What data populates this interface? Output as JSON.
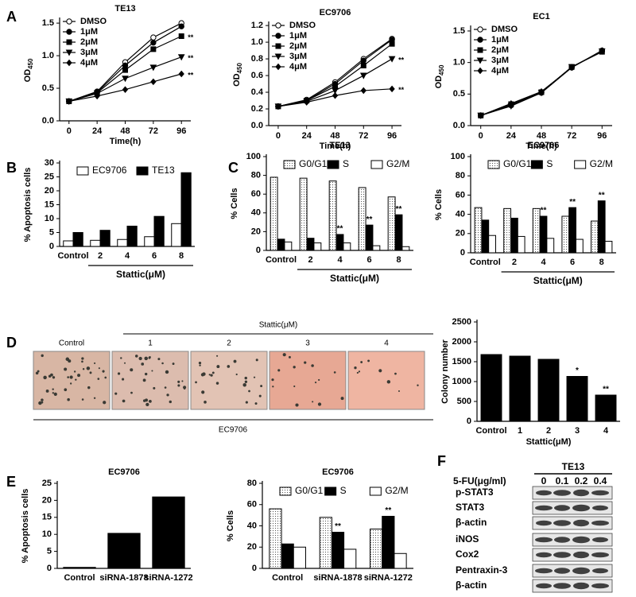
{
  "panels": [
    "A",
    "B",
    "C",
    "D",
    "E",
    "F"
  ],
  "chart_data": [
    {
      "type": "line",
      "title": "TE13",
      "x_label": "Time(h)",
      "y_label": "OD",
      "y_label_sub": "450",
      "x": [
        0,
        24,
        48,
        72,
        96
      ],
      "xlim": [
        -8,
        104
      ],
      "xticks": [
        0,
        24,
        48,
        72,
        96
      ],
      "ylim": [
        0,
        1.55
      ],
      "yticks": [
        {
          "value": 0,
          "label": "0.0"
        },
        0.5,
        {
          "value": 1,
          "label": "1.0"
        },
        1.5
      ],
      "legend": "upper left",
      "series": [
        {
          "name": "DMSO",
          "color": "#000000",
          "marker": "open-circle",
          "values": [
            0.3,
            0.45,
            0.9,
            1.28,
            1.5
          ],
          "annotations": [
            null,
            null,
            null,
            null,
            null
          ]
        },
        {
          "name": "1μM",
          "color": "#000000",
          "marker": "circle",
          "values": [
            0.3,
            0.44,
            0.85,
            1.2,
            1.45
          ],
          "annotations": [
            null,
            null,
            null,
            null,
            null
          ]
        },
        {
          "name": "2μM",
          "color": "#000000",
          "marker": "square",
          "values": [
            0.3,
            0.43,
            0.78,
            1.1,
            1.3
          ],
          "annotations": [
            null,
            null,
            null,
            null,
            "**"
          ]
        },
        {
          "name": "3μM",
          "color": "#000000",
          "marker": "triangle-down",
          "values": [
            0.3,
            0.42,
            0.65,
            0.82,
            0.98
          ],
          "annotations": [
            null,
            null,
            null,
            null,
            "**"
          ]
        },
        {
          "name": "4μM",
          "color": "#000000",
          "marker": "diamond",
          "values": [
            0.3,
            0.38,
            0.48,
            0.6,
            0.72
          ],
          "annotations": [
            null,
            null,
            null,
            null,
            "**"
          ]
        }
      ]
    },
    {
      "type": "line",
      "title": "EC9706",
      "x_label": "Time(h)",
      "y_label": "OD",
      "y_label_sub": "450",
      "x": [
        0,
        24,
        48,
        72,
        96
      ],
      "xlim": [
        -8,
        104
      ],
      "xticks": [
        0,
        24,
        48,
        72,
        96
      ],
      "ylim": [
        0,
        1.22
      ],
      "yticks": [
        {
          "value": 0,
          "label": "0.0"
        },
        0.2,
        0.4,
        0.6,
        0.8,
        {
          "value": 1,
          "label": "1.0"
        },
        1.2
      ],
      "legend": "upper left",
      "series": [
        {
          "name": "DMSO",
          "color": "#000000",
          "marker": "open-circle",
          "values": [
            0.23,
            0.31,
            0.52,
            0.8,
            1.04
          ],
          "annotations": [
            null,
            null,
            null,
            null,
            null
          ]
        },
        {
          "name": "1μM",
          "color": "#000000",
          "marker": "circle",
          "values": [
            0.23,
            0.3,
            0.5,
            0.78,
            1.03
          ],
          "annotations": [
            null,
            null,
            null,
            null,
            null
          ]
        },
        {
          "name": "2μM",
          "color": "#000000",
          "marker": "square",
          "values": [
            0.23,
            0.3,
            0.47,
            0.72,
            0.98
          ],
          "annotations": [
            null,
            null,
            null,
            null,
            null
          ]
        },
        {
          "name": "3μM",
          "color": "#000000",
          "marker": "triangle-down",
          "values": [
            0.23,
            0.29,
            0.42,
            0.6,
            0.8
          ],
          "annotations": [
            null,
            null,
            null,
            null,
            "**"
          ]
        },
        {
          "name": "4μM",
          "color": "#000000",
          "marker": "diamond",
          "values": [
            0.23,
            0.28,
            0.36,
            0.42,
            0.44
          ],
          "annotations": [
            null,
            null,
            null,
            null,
            "**"
          ]
        }
      ]
    },
    {
      "type": "line",
      "title": "EC1",
      "x_label": "Time(h)",
      "y_label": "OD",
      "y_label_sub": "450",
      "x": [
        0,
        24,
        48,
        72,
        96
      ],
      "xlim": [
        -8,
        104
      ],
      "xticks": [
        0,
        24,
        48,
        72,
        96
      ],
      "ylim": [
        0,
        1.55
      ],
      "yticks": [
        {
          "value": 0,
          "label": "0.0"
        },
        0.5,
        {
          "value": 1,
          "label": "1.0"
        },
        1.5
      ],
      "legend": "upper left",
      "series": [
        {
          "name": "DMSO",
          "color": "#000000",
          "marker": "open-circle",
          "values": [
            0.16,
            0.33,
            0.53,
            0.93,
            1.18
          ],
          "annotations": [
            null,
            null,
            null,
            null,
            null
          ]
        },
        {
          "name": "1μM",
          "color": "#000000",
          "marker": "circle",
          "values": [
            0.16,
            0.32,
            0.52,
            0.92,
            1.19
          ],
          "annotations": [
            null,
            null,
            null,
            null,
            null
          ]
        },
        {
          "name": "2μM",
          "color": "#000000",
          "marker": "square",
          "values": [
            0.16,
            0.34,
            0.53,
            0.93,
            1.17
          ],
          "annotations": [
            null,
            null,
            null,
            null,
            null
          ]
        },
        {
          "name": "3μM",
          "color": "#000000",
          "marker": "triangle-down",
          "values": [
            0.16,
            0.31,
            0.52,
            0.93,
            1.18
          ],
          "annotations": [
            null,
            null,
            null,
            null,
            null
          ]
        },
        {
          "name": "4μM",
          "color": "#000000",
          "marker": "diamond",
          "values": [
            0.16,
            0.35,
            0.54,
            0.92,
            1.19
          ],
          "annotations": [
            null,
            null,
            null,
            null,
            null
          ]
        }
      ]
    },
    {
      "type": "bar",
      "y_label": "% Apoptosis cells",
      "x_group_label": "Stattic(μM)",
      "categories": [
        "Control",
        "2",
        "4",
        "6",
        "8"
      ],
      "ylim": [
        0,
        30
      ],
      "yticks": [
        0,
        5,
        10,
        15,
        20,
        25,
        30
      ],
      "legend": "upper center",
      "series": [
        {
          "name": "EC9706",
          "color": "#ffffff",
          "values": [
            2,
            2.2,
            2.5,
            3.5,
            8.2
          ],
          "annotations": [
            null,
            null,
            null,
            null,
            null
          ]
        },
        {
          "name": "TE13",
          "color": "#000000",
          "values": [
            5,
            5.8,
            7.3,
            10.8,
            26.5
          ],
          "annotations": [
            null,
            null,
            null,
            null,
            null
          ]
        }
      ]
    },
    {
      "type": "bar",
      "title": "TE13",
      "y_label": "% Cells",
      "x_group_label": "Stattic(μM)",
      "categories": [
        "Control",
        "2",
        "4",
        "6",
        "8"
      ],
      "ylim": [
        0,
        100
      ],
      "yticks": [
        0,
        20,
        40,
        60,
        80,
        100
      ],
      "legend": "upper center",
      "series": [
        {
          "name": "G0/G1",
          "color": "#ffffff",
          "pattern": "dots",
          "values": [
            78,
            77,
            74,
            67,
            57
          ],
          "annotations": [
            null,
            null,
            null,
            null,
            null
          ]
        },
        {
          "name": "S",
          "color": "#000000",
          "values": [
            12,
            13,
            17,
            27,
            38
          ],
          "annotations": [
            null,
            null,
            "**",
            "**",
            "**"
          ]
        },
        {
          "name": "G2/M",
          "color": "#ffffff",
          "values": [
            9,
            8,
            8,
            5,
            4
          ],
          "annotations": [
            null,
            null,
            null,
            null,
            null
          ]
        }
      ]
    },
    {
      "type": "bar",
      "title": "EC9706",
      "y_label": "% Cells",
      "x_group_label": "Stattic(μM)",
      "categories": [
        "Control",
        "2",
        "4",
        "6",
        "8"
      ],
      "ylim": [
        0,
        100
      ],
      "yticks": [
        0,
        20,
        40,
        60,
        80,
        100
      ],
      "legend": "upper center",
      "series": [
        {
          "name": "G0/G1",
          "color": "#ffffff",
          "pattern": "dots",
          "values": [
            47,
            46,
            46,
            38,
            33
          ],
          "annotations": [
            null,
            null,
            null,
            null,
            null
          ]
        },
        {
          "name": "S",
          "color": "#000000",
          "values": [
            34,
            36,
            38,
            47,
            54
          ],
          "annotations": [
            null,
            null,
            "**",
            "**",
            "**"
          ]
        },
        {
          "name": "G2/M",
          "color": "#ffffff",
          "values": [
            18,
            17,
            15,
            14,
            12
          ],
          "annotations": [
            null,
            null,
            null,
            null,
            null
          ]
        }
      ]
    },
    {
      "type": "bar",
      "y_label": "Colony number",
      "x_label": "Stattic(μM)",
      "categories": [
        "Control",
        "1",
        "2",
        "3",
        "4"
      ],
      "ylim": [
        0,
        2500
      ],
      "yticks": [
        0,
        500,
        1000,
        1500,
        2000,
        2500
      ],
      "series": [
        {
          "color": "#000000",
          "values": [
            1680,
            1640,
            1560,
            1130,
            660
          ],
          "annotations": [
            null,
            null,
            null,
            "*",
            "**"
          ]
        }
      ]
    },
    {
      "type": "bar",
      "title": "EC9706",
      "y_label": "% Apoptosis cells",
      "categories": [
        "Control",
        "siRNA-1878",
        "siRNA-1272"
      ],
      "ylim": [
        0,
        25
      ],
      "yticks": [
        0,
        5,
        10,
        15,
        20,
        25
      ],
      "series": [
        {
          "color": "#000000",
          "values": [
            0.3,
            10.3,
            21
          ],
          "annotations": [
            null,
            null,
            null
          ]
        }
      ]
    },
    {
      "type": "bar",
      "title": "EC9706",
      "y_label": "% Cells",
      "categories": [
        "Control",
        "siRNA-1878",
        "siRNA-1272"
      ],
      "ylim": [
        0,
        80
      ],
      "yticks": [
        0,
        20,
        40,
        60,
        80
      ],
      "legend": "upper center",
      "series": [
        {
          "name": "G0/G1",
          "color": "#ffffff",
          "pattern": "dots",
          "values": [
            56,
            48,
            37
          ],
          "annotations": [
            null,
            null,
            null
          ]
        },
        {
          "name": "S",
          "color": "#000000",
          "values": [
            23,
            34,
            49
          ],
          "annotations": [
            null,
            "**",
            "**"
          ]
        },
        {
          "name": "G2/M",
          "color": "#ffffff",
          "values": [
            20,
            18,
            14
          ],
          "annotations": [
            null,
            null,
            null
          ]
        }
      ]
    }
  ],
  "micrographs": {
    "group_label": "Stattic(μM)",
    "labels": [
      "Control",
      "1",
      "2",
      "3",
      "4"
    ],
    "cell_line": "EC9706"
  },
  "blot": {
    "treatment": "5-FU(μg/ml)",
    "cell_line": "TE13",
    "doses": [
      "0",
      "0.1",
      "0.2",
      "0.4"
    ],
    "rows": [
      "p-STAT3",
      "STAT3",
      "β-actin",
      "iNOS",
      "Cox2",
      "Pentraxin-3",
      "β-actin"
    ]
  }
}
